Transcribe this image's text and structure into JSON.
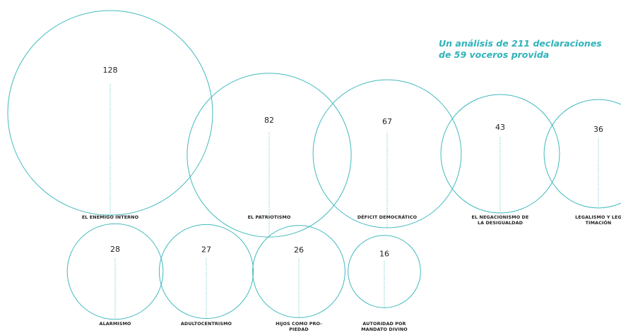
{
  "subtitle": {
    "line1": "Un análisis de 211 declaraciones",
    "line2": "de 59 voceros provida"
  },
  "colors": {
    "circle": "#43b9be",
    "stem": "#43b9be",
    "subtitle": "#2fb3b9"
  },
  "chart_data": {
    "type": "bubble",
    "size_encoding": "circle area proportional to value",
    "items": [
      {
        "value": 128,
        "label": [
          "EL ENEMIGO INTERNO"
        ]
      },
      {
        "value": 82,
        "label": [
          "EL PATRIOTISMO"
        ]
      },
      {
        "value": 67,
        "label": [
          "DÉFICIT DEMOCRÁTICO"
        ]
      },
      {
        "value": 43,
        "label": [
          "EL NEGACIONISMO DE",
          "LA DESIGUALDAD"
        ]
      },
      {
        "value": 36,
        "label": [
          "LEGALISMO Y LEG",
          "TIMACIÓN"
        ]
      },
      {
        "value": 28,
        "label": [
          "ALARMISMO"
        ]
      },
      {
        "value": 27,
        "label": [
          "ADULTOCENTRISMO"
        ]
      },
      {
        "value": 26,
        "label": [
          "HIJOS COMO PRO-",
          "PIEDAD"
        ]
      },
      {
        "value": 16,
        "label": [
          "AUTORIDAD POR",
          "MANDATO DIVINO"
        ]
      }
    ]
  }
}
